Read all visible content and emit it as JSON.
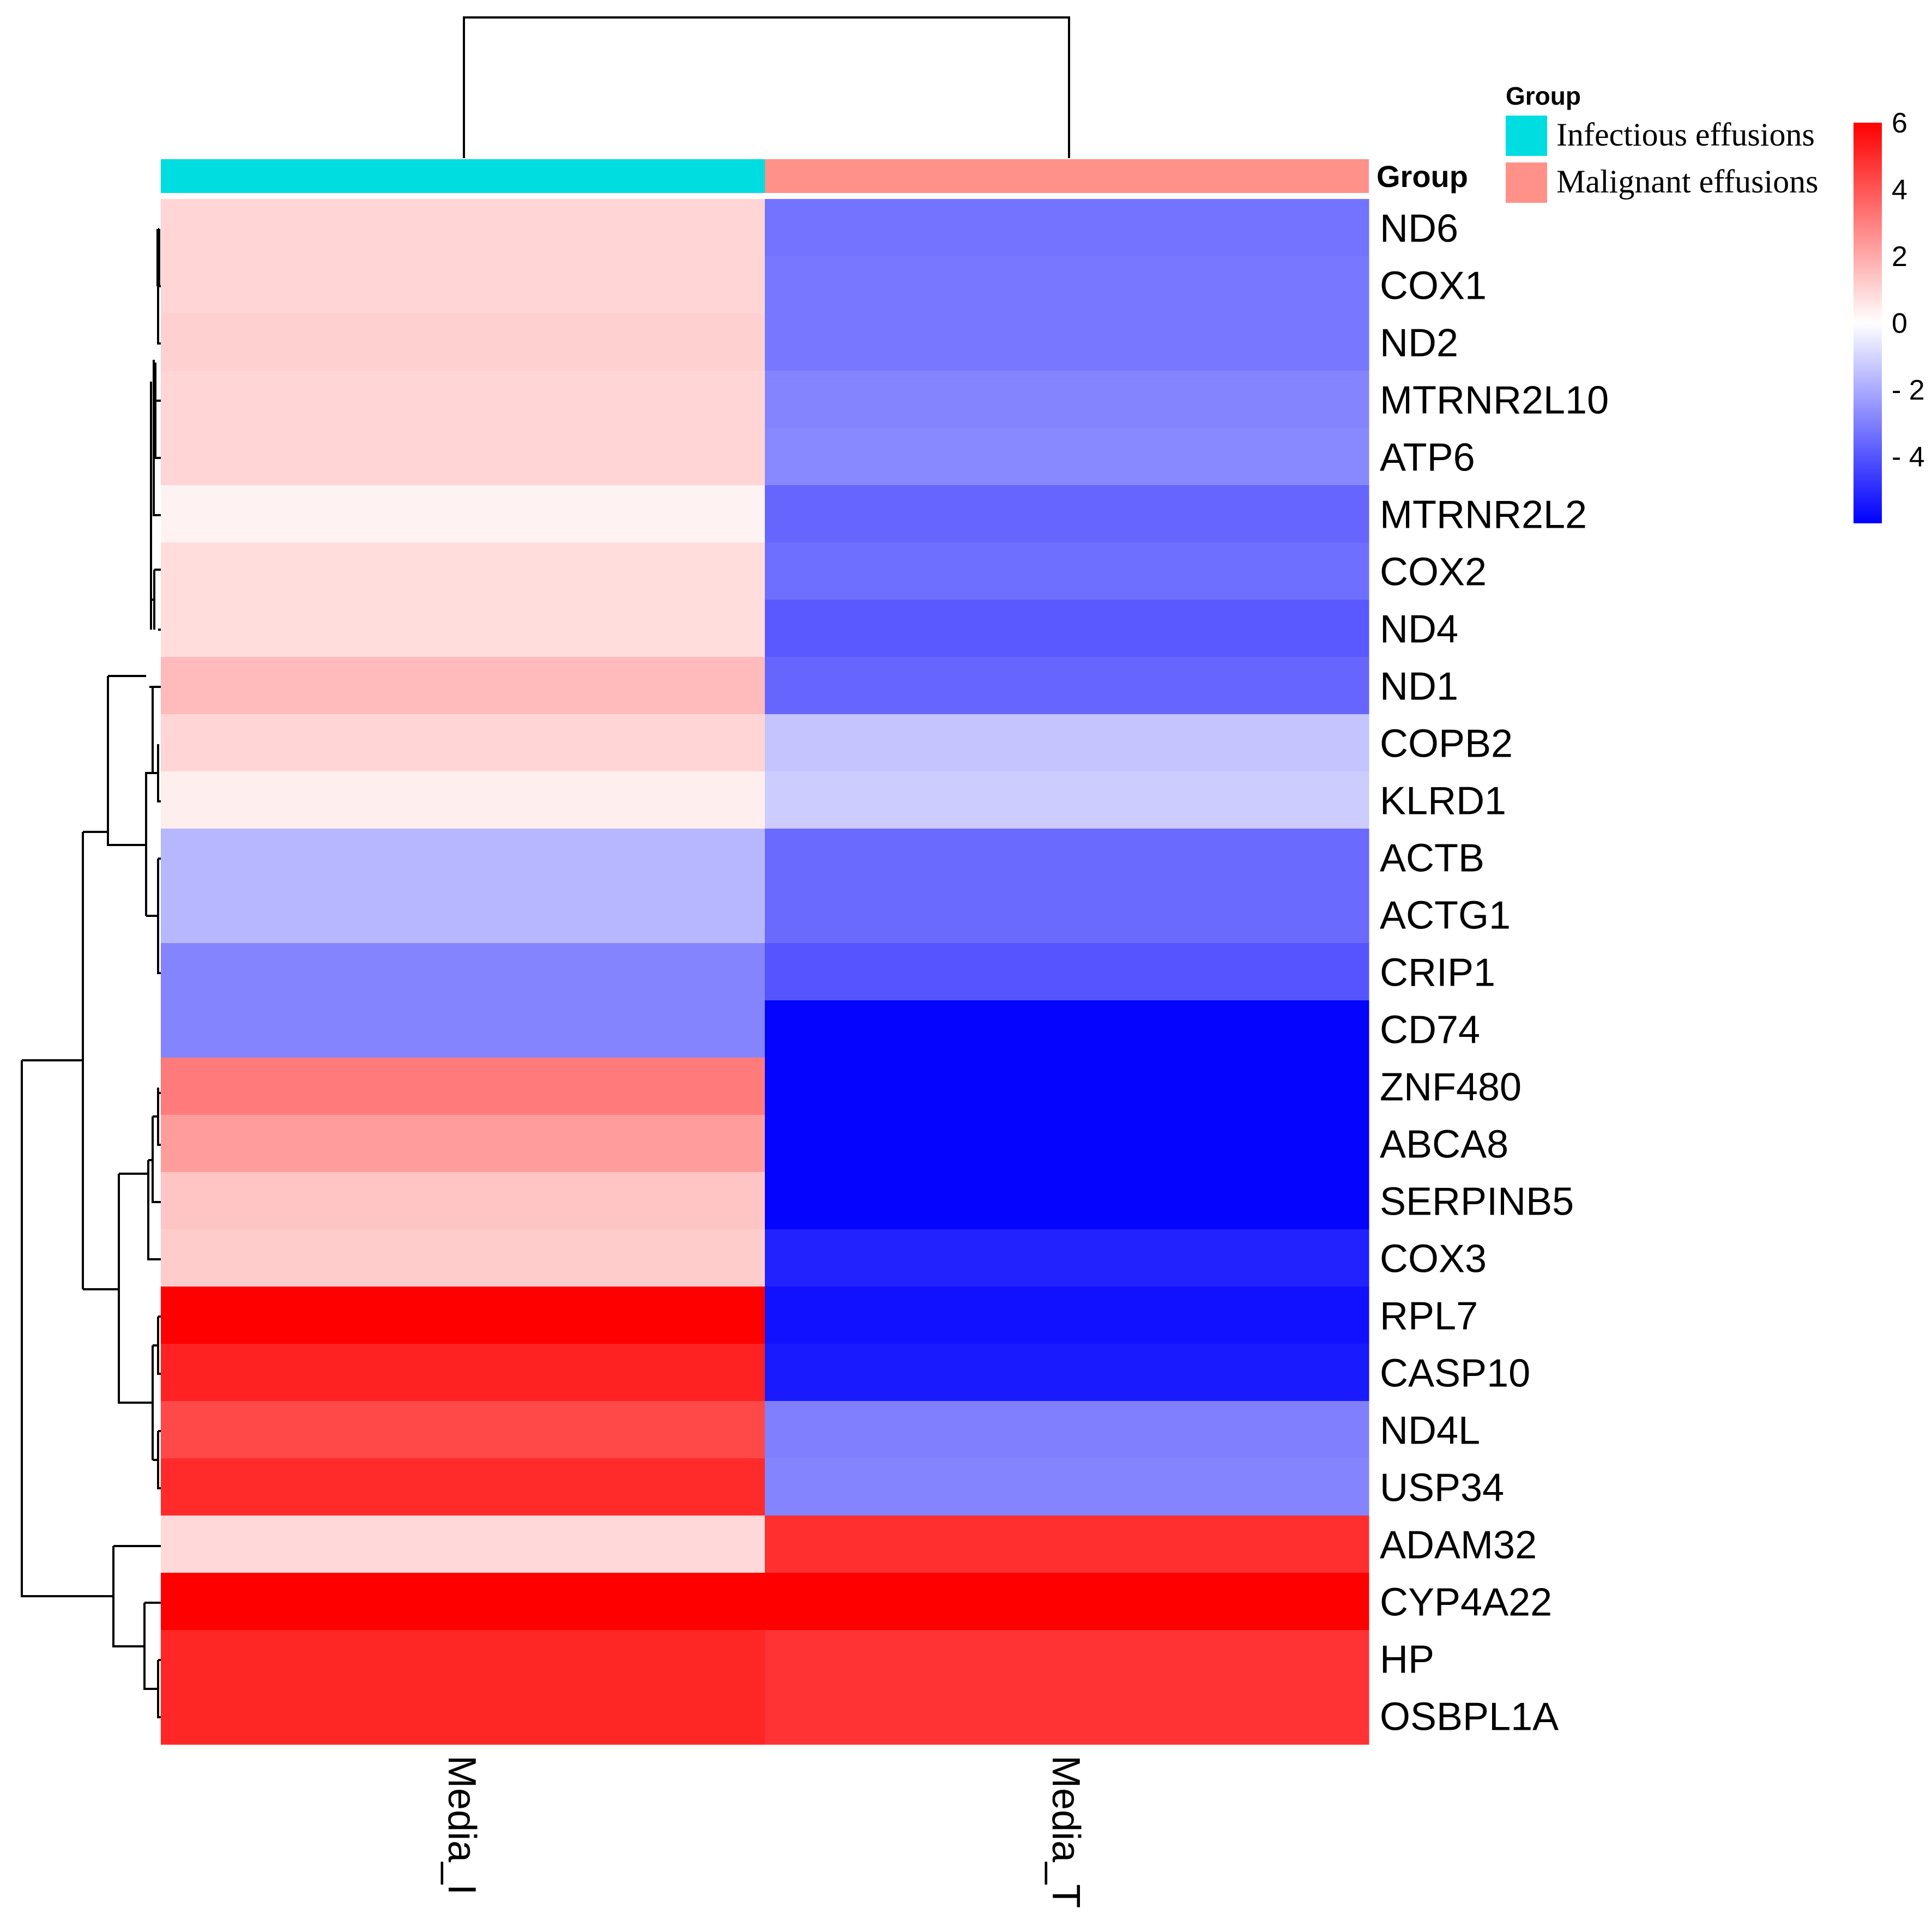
{
  "chart_data": {
    "type": "heatmap",
    "title": "",
    "samples": [
      "Media_I",
      "Media_T"
    ],
    "genes": [
      "ND6",
      "COX1",
      "ND2",
      "MTRNR2L10",
      "ATP6",
      "MTRNR2L2",
      "COX2",
      "ND4",
      "ND1",
      "COPB2",
      "KLRD1",
      "ACTB",
      "ACTG1",
      "CRIP1",
      "CD74",
      "ZNF480",
      "ABCA8",
      "SERPINB5",
      "COX3",
      "RPL7",
      "CASP10",
      "ND4L",
      "USP34",
      "ADAM32",
      "CYP4A22",
      "HP",
      "OSBPL1A"
    ],
    "values": [
      [
        1.0,
        -3.3
      ],
      [
        1.0,
        -3.2
      ],
      [
        1.1,
        -3.2
      ],
      [
        1.0,
        -2.9
      ],
      [
        1.0,
        -2.8
      ],
      [
        0.3,
        -3.6
      ],
      [
        0.8,
        -3.4
      ],
      [
        0.8,
        -3.9
      ],
      [
        1.6,
        -3.6
      ],
      [
        1.0,
        -1.4
      ],
      [
        0.4,
        -1.2
      ],
      [
        -1.7,
        -3.5
      ],
      [
        -1.7,
        -3.5
      ],
      [
        -2.9,
        -4.0
      ],
      [
        -2.9,
        -5.9
      ],
      [
        3.1,
        -5.9
      ],
      [
        2.3,
        -5.9
      ],
      [
        1.4,
        -5.9
      ],
      [
        1.2,
        -5.2
      ],
      [
        6.2,
        -5.6
      ],
      [
        5.2,
        -5.4
      ],
      [
        4.3,
        -3.0
      ],
      [
        5.0,
        -2.9
      ],
      [
        0.9,
        4.9
      ],
      [
        6.3,
        6.3
      ],
      [
        5.1,
        4.8
      ],
      [
        5.1,
        4.8
      ]
    ],
    "color_range": [
      -6,
      6
    ],
    "colors": {
      "low": "#0000ff",
      "mid": "#ffffff",
      "high": "#ff0000"
    },
    "scale_ticks": [
      "6",
      "4",
      "2",
      "0",
      "- 2",
      "- 4"
    ],
    "scale_tick_values": [
      6,
      4,
      2,
      0,
      -2,
      -4
    ],
    "annotation": {
      "label": "Group",
      "legend_title": "Group",
      "sample_groups": [
        "Infectious effusions",
        "Malignant effusions"
      ],
      "legend": [
        {
          "name": "Infectious effusions",
          "color": "#00dde0"
        },
        {
          "name": "Malignant effusions",
          "color": "#ff9188"
        }
      ]
    },
    "row_dendrogram": true,
    "column_dendrogram": true
  }
}
